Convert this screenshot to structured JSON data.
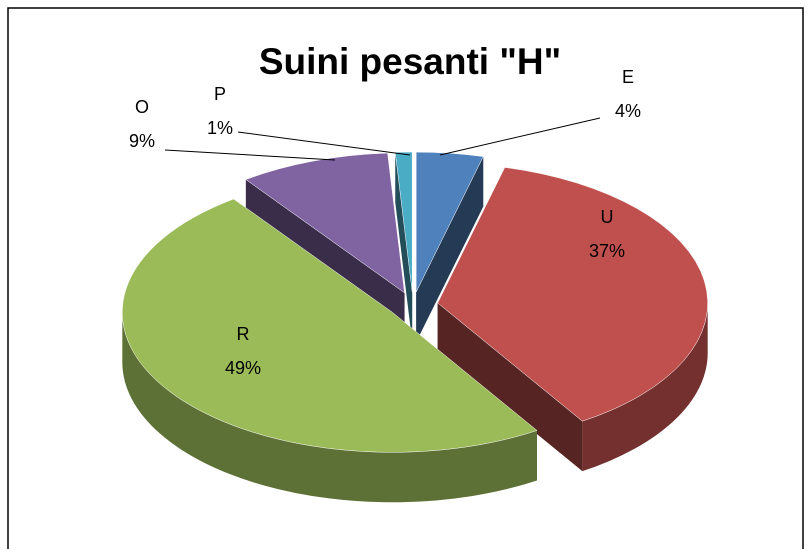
{
  "chart_data": {
    "type": "pie",
    "title": "Suini pesanti \"H\"",
    "categories": [
      "E",
      "U",
      "R",
      "O",
      "P"
    ],
    "values": [
      4,
      37,
      49,
      9,
      1
    ],
    "value_labels": [
      "4%",
      "37%",
      "49%",
      "9%",
      "1%"
    ],
    "colors": [
      "#4f81bd",
      "#c0504d",
      "#9bbb59",
      "#8064a2",
      "#4bacc6"
    ]
  }
}
